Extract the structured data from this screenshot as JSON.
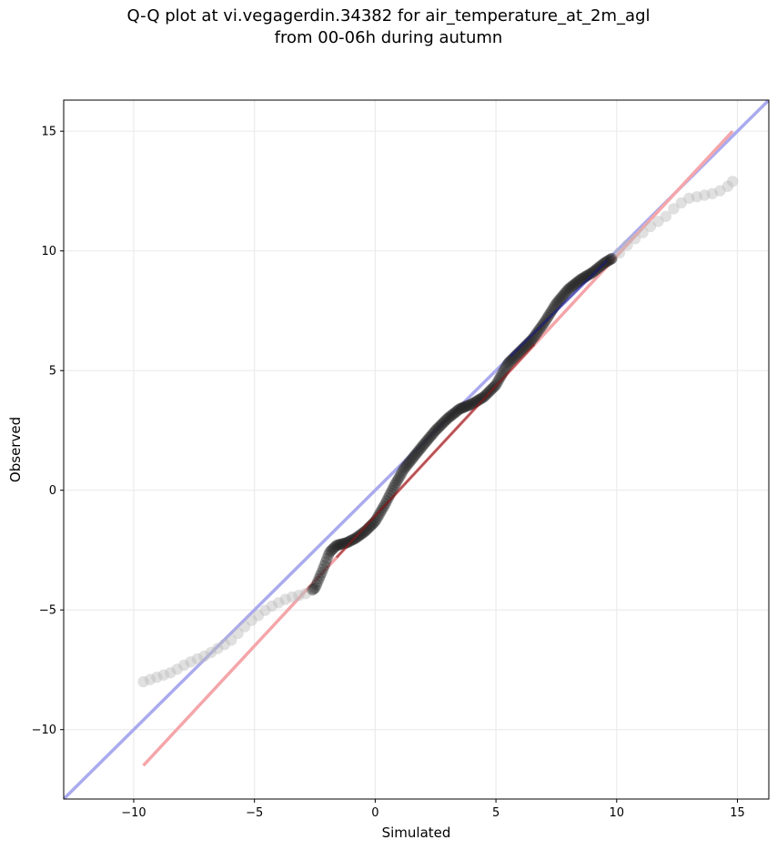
{
  "chart_data": {
    "type": "scatter",
    "title_line1": "Q-Q plot at vi.vegagerdin.34382 for air_temperature_at_2m_agl",
    "title_line2": "from 00-06h during autumn",
    "xlabel": "Simulated",
    "ylabel": "Observed",
    "xlim": [
      -12.9,
      16.3
    ],
    "ylim": [
      -12.9,
      16.3
    ],
    "xticks": [
      -10,
      -5,
      0,
      5,
      10,
      15
    ],
    "yticks": [
      -10,
      -5,
      0,
      5,
      10,
      15
    ],
    "xtick_labels": [
      "−10",
      "−5",
      "0",
      "5",
      "10",
      "15"
    ],
    "ytick_labels": [
      "−10",
      "−5",
      "0",
      "5",
      "10",
      "15"
    ],
    "grid": true,
    "colors": {
      "identity_line": "#aaaaee",
      "fit_line": "#f4a6aa",
      "points": "#222222",
      "points_tail": "#bbbbbb"
    },
    "identity_line": {
      "x": [
        -12.9,
        16.3
      ],
      "y": [
        -12.9,
        16.3
      ]
    },
    "fit_line": {
      "x": [
        -9.6,
        14.8
      ],
      "y": [
        -11.5,
        15.0
      ]
    },
    "quantile_curve": {
      "x": [
        -9.6,
        -9.0,
        -8.4,
        -7.9,
        -7.5,
        -7.0,
        -6.5,
        -6.0,
        -5.6,
        -5.2,
        -4.8,
        -4.4,
        -4.0,
        -3.6,
        -3.2,
        -2.8,
        -2.5,
        -2.2,
        -1.9,
        -1.6,
        -1.2,
        -0.8,
        -0.4,
        0.0,
        0.4,
        0.8,
        1.2,
        1.6,
        2.0,
        2.5,
        3.0,
        3.5,
        4.0,
        4.5,
        5.0,
        5.5,
        6.0,
        6.5,
        7.0,
        7.5,
        8.0,
        8.5,
        9.0,
        9.5,
        10.0,
        10.5,
        11.0,
        11.5,
        12.0,
        12.5,
        13.0,
        13.5,
        14.0,
        14.5,
        14.8
      ],
      "y": [
        -8.0,
        -7.8,
        -7.6,
        -7.3,
        -7.1,
        -6.9,
        -6.6,
        -6.3,
        -5.9,
        -5.5,
        -5.2,
        -4.9,
        -4.7,
        -4.5,
        -4.4,
        -4.3,
        -4.1,
        -3.4,
        -2.6,
        -2.3,
        -2.2,
        -2.0,
        -1.7,
        -1.3,
        -0.6,
        0.2,
        0.9,
        1.4,
        1.9,
        2.5,
        3.0,
        3.4,
        3.6,
        3.9,
        4.4,
        5.3,
        5.8,
        6.3,
        7.0,
        7.8,
        8.4,
        8.8,
        9.1,
        9.5,
        9.8,
        10.3,
        10.7,
        11.1,
        11.4,
        11.9,
        12.2,
        12.3,
        12.4,
        12.6,
        12.9
      ]
    }
  }
}
